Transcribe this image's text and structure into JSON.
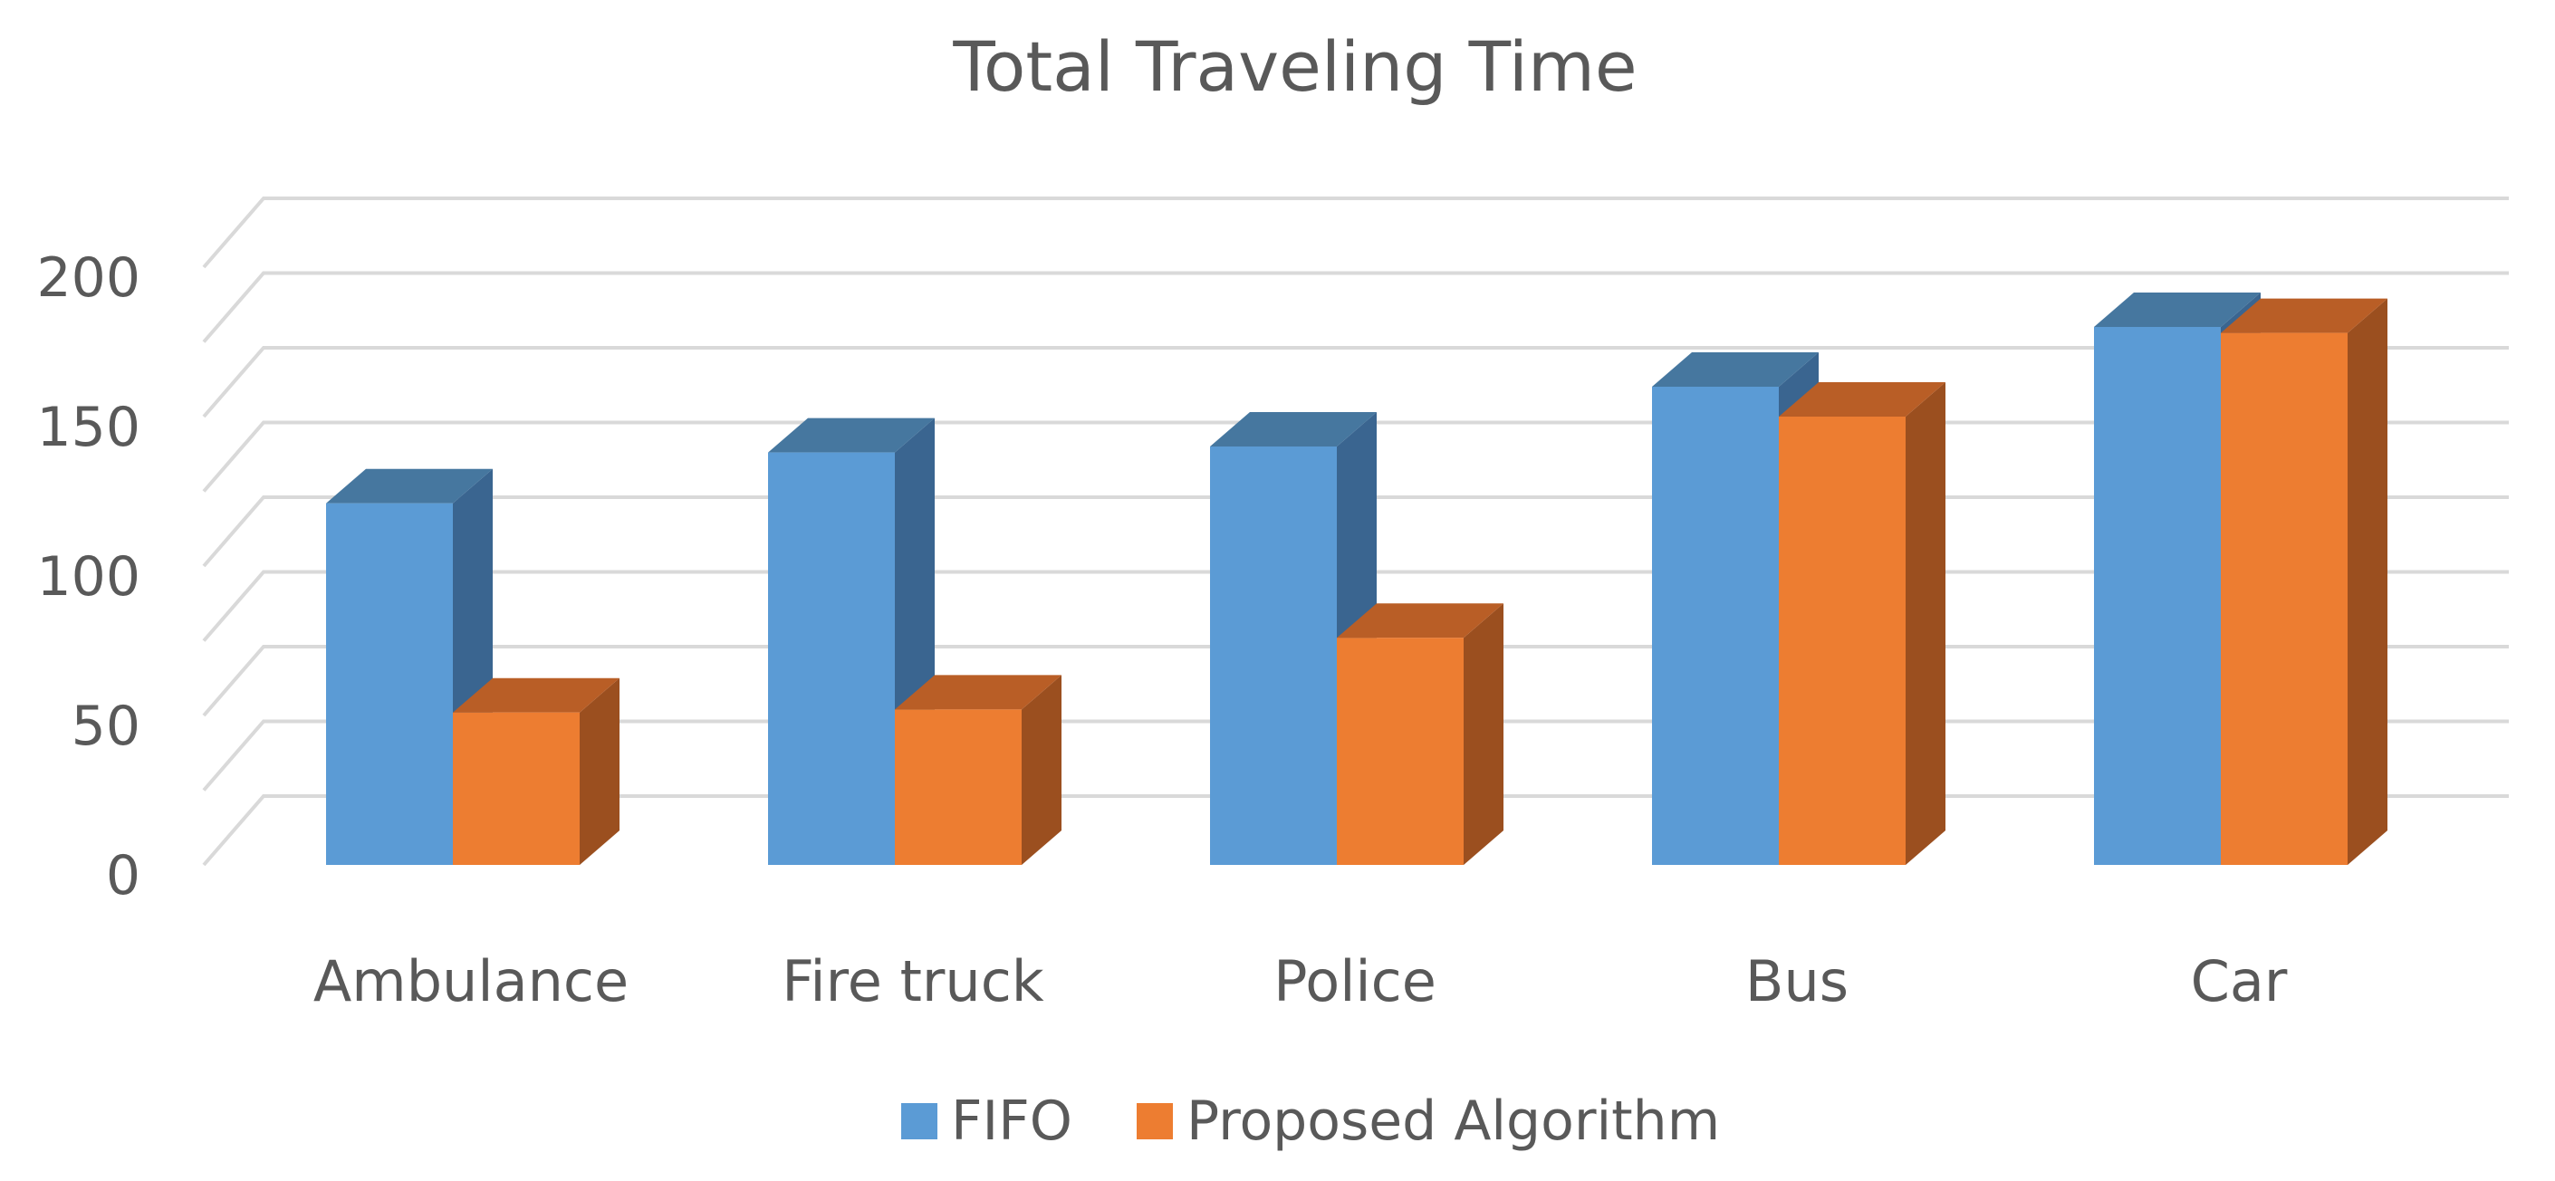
{
  "chart_data": {
    "type": "bar",
    "title": "Total Traveling Time",
    "xlabel": "",
    "ylabel": "",
    "categories": [
      "Ambulance",
      "Fire truck",
      "Police",
      "Bus",
      "Car"
    ],
    "series": [
      {
        "name": "FIFO",
        "values": [
          121,
          138,
          140,
          160,
          180
        ]
      },
      {
        "name": "Proposed Algorithm",
        "values": [
          51,
          52,
          76,
          150,
          178
        ]
      }
    ],
    "y_ticks": [
      0,
      50,
      100,
      150,
      200
    ],
    "ylim": [
      0,
      200
    ],
    "grid": true,
    "legend_position": "bottom",
    "style": "3d-column",
    "colors": {
      "FIFO": {
        "front": "#5b9bd5",
        "side": "#3a6590",
        "top": "#46779f"
      },
      "Proposed Algorithm": {
        "front": "#ed7d31",
        "side": "#9b4f1f",
        "top": "#b95e26"
      },
      "grid": "#d9d9d9",
      "text": "#595959"
    }
  }
}
